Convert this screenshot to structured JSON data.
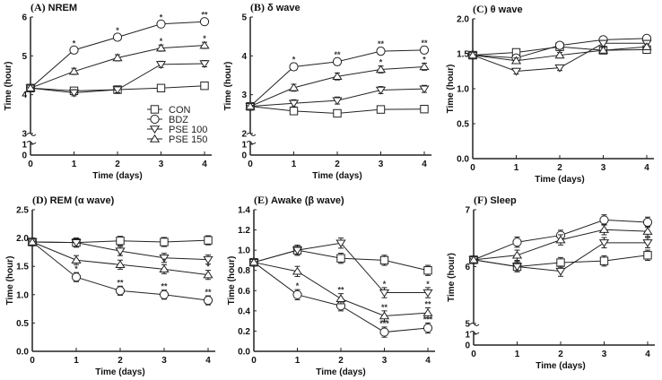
{
  "chart_data": [
    {
      "type": "line",
      "panel": "(A)",
      "title": "NREM",
      "xlabel": "Time (days)",
      "ylabel": "Time (hour)",
      "x": [
        0,
        1,
        2,
        3,
        4
      ],
      "yticks": [
        "0",
        "1",
        "3",
        "4",
        "5",
        "6"
      ],
      "ylim": [
        3,
        6
      ],
      "axis_break": true,
      "err": 0.08,
      "series": [
        {
          "name": "CON",
          "marker": "square",
          "values": [
            4.17,
            4.1,
            4.13,
            4.17,
            4.23
          ],
          "stars": [
            "",
            "",
            "",
            "",
            ""
          ]
        },
        {
          "name": "BDZ",
          "marker": "circle",
          "values": [
            4.17,
            5.15,
            5.48,
            5.82,
            5.88
          ],
          "stars": [
            "",
            "*",
            "*",
            "*",
            "**"
          ]
        },
        {
          "name": "PSE 100",
          "marker": "triangle-down",
          "values": [
            4.17,
            4.05,
            4.13,
            4.78,
            4.8
          ],
          "stars": [
            "",
            "",
            "",
            "",
            ""
          ]
        },
        {
          "name": "PSE 150",
          "marker": "triangle-up",
          "values": [
            4.17,
            4.6,
            4.95,
            5.2,
            5.27
          ],
          "stars": [
            "",
            "",
            "",
            "*",
            "*"
          ]
        }
      ]
    },
    {
      "type": "line",
      "panel": "(B)",
      "title": "δ wave",
      "xlabel": "Time (days)",
      "ylabel": "Time (hour)",
      "x": [
        0,
        1,
        2,
        3,
        4
      ],
      "yticks": [
        "0",
        "1",
        "2",
        "3",
        "4",
        "5"
      ],
      "ylim": [
        2,
        5
      ],
      "axis_break": true,
      "err": 0.09,
      "series": [
        {
          "name": "CON",
          "marker": "square",
          "values": [
            2.7,
            2.58,
            2.52,
            2.62,
            2.63
          ],
          "stars": [
            "",
            "",
            "",
            "",
            ""
          ]
        },
        {
          "name": "BDZ",
          "marker": "circle",
          "values": [
            2.7,
            3.72,
            3.85,
            4.12,
            4.15
          ],
          "stars": [
            "",
            "*",
            "**",
            "**",
            "**"
          ]
        },
        {
          "name": "PSE 100",
          "marker": "triangle-down",
          "values": [
            2.7,
            2.78,
            2.85,
            3.12,
            3.15
          ],
          "stars": [
            "",
            "",
            "",
            "",
            ""
          ]
        },
        {
          "name": "PSE 150",
          "marker": "triangle-up",
          "values": [
            2.7,
            3.18,
            3.47,
            3.65,
            3.72
          ],
          "stars": [
            "",
            "",
            "",
            "*",
            "*"
          ]
        }
      ]
    },
    {
      "type": "line",
      "panel": "(C)",
      "title": "θ wave",
      "xlabel": "Time (days)",
      "ylabel": "Time (hour)",
      "x": [
        0,
        1,
        2,
        3,
        4
      ],
      "yticks": [
        "0.0",
        "0.5",
        "1.0",
        "1.5",
        "2.0"
      ],
      "ylim": [
        0,
        2
      ],
      "axis_break": false,
      "err": 0.04,
      "series": [
        {
          "name": "CON",
          "marker": "square",
          "values": [
            1.48,
            1.52,
            1.6,
            1.55,
            1.56
          ],
          "stars": [
            "",
            "",
            "",
            "",
            ""
          ]
        },
        {
          "name": "BDZ",
          "marker": "circle",
          "values": [
            1.48,
            1.44,
            1.62,
            1.7,
            1.72
          ],
          "stars": [
            "",
            "",
            "",
            "",
            ""
          ]
        },
        {
          "name": "PSE 100",
          "marker": "triangle-down",
          "values": [
            1.48,
            1.25,
            1.3,
            1.65,
            1.65
          ],
          "stars": [
            "",
            "",
            "",
            "",
            ""
          ]
        },
        {
          "name": "PSE 150",
          "marker": "triangle-up",
          "values": [
            1.48,
            1.4,
            1.48,
            1.55,
            1.6
          ],
          "stars": [
            "",
            "",
            "",
            "",
            ""
          ]
        }
      ]
    },
    {
      "type": "line",
      "panel": "(D)",
      "title": "REM (α wave)",
      "xlabel": "Time (days)",
      "ylabel": "Time (hour)",
      "x": [
        0,
        1,
        2,
        3,
        4
      ],
      "yticks": [
        "0.0",
        "0.5",
        "1.0",
        "1.5",
        "2.0",
        "2.5"
      ],
      "ylim": [
        0,
        2.5
      ],
      "axis_break": false,
      "err": 0.08,
      "series": [
        {
          "name": "CON",
          "marker": "square",
          "values": [
            1.93,
            1.92,
            1.95,
            1.93,
            1.96
          ],
          "stars": [
            "",
            "",
            "",
            "",
            ""
          ]
        },
        {
          "name": "BDZ",
          "marker": "circle",
          "values": [
            1.93,
            1.31,
            1.07,
            1.0,
            0.9
          ],
          "stars": [
            "",
            "*",
            "**",
            "**",
            "**"
          ]
        },
        {
          "name": "PSE 100",
          "marker": "triangle-down",
          "values": [
            1.93,
            1.92,
            1.77,
            1.65,
            1.62
          ],
          "stars": [
            "",
            "",
            "",
            "",
            ""
          ]
        },
        {
          "name": "PSE 150",
          "marker": "triangle-up",
          "values": [
            1.93,
            1.61,
            1.53,
            1.45,
            1.35
          ],
          "stars": [
            "",
            "",
            "*",
            "*",
            "*"
          ]
        }
      ]
    },
    {
      "type": "line",
      "panel": "(E)",
      "title": "Awake (β wave)",
      "xlabel": "Time (days)",
      "ylabel": "Time (hour)",
      "x": [
        0,
        1,
        2,
        3,
        4
      ],
      "yticks": [
        "0.0",
        "0.2",
        "0.4",
        "0.6",
        "0.8",
        "1.0",
        "1.2",
        "1.4"
      ],
      "ylim": [
        0,
        1.4
      ],
      "axis_break": false,
      "err": 0.05,
      "series": [
        {
          "name": "CON",
          "marker": "square",
          "values": [
            0.88,
            1.0,
            0.92,
            0.9,
            0.8
          ],
          "stars": [
            "",
            "",
            "",
            "",
            ""
          ]
        },
        {
          "name": "BDZ",
          "marker": "circle",
          "values": [
            0.88,
            0.56,
            0.45,
            0.19,
            0.23
          ],
          "stars": [
            "",
            "*",
            "",
            "***",
            "***"
          ]
        },
        {
          "name": "PSE 100",
          "marker": "triangle-down",
          "values": [
            0.88,
            1.0,
            1.07,
            0.58,
            0.58
          ],
          "stars": [
            "",
            "",
            "",
            "*",
            "*"
          ]
        },
        {
          "name": "PSE 150",
          "marker": "triangle-up",
          "values": [
            0.88,
            0.79,
            0.52,
            0.35,
            0.38
          ],
          "stars": [
            "",
            "",
            "**",
            "**",
            "**"
          ]
        }
      ]
    },
    {
      "type": "line",
      "panel": "(F)",
      "title": "Sleep",
      "xlabel": "Time (days)",
      "ylabel": "Time (hour)",
      "x": [
        0,
        1,
        2,
        3,
        4
      ],
      "yticks": [
        "0",
        "1",
        "5",
        "6",
        "7"
      ],
      "ylim": [
        5,
        7
      ],
      "axis_break": true,
      "err": 0.09,
      "series": [
        {
          "name": "CON",
          "marker": "square",
          "values": [
            6.12,
            6.0,
            6.07,
            6.1,
            6.2
          ],
          "stars": [
            "",
            "",
            "",
            "",
            ""
          ]
        },
        {
          "name": "BDZ",
          "marker": "circle",
          "values": [
            6.12,
            6.43,
            6.55,
            6.82,
            6.78
          ],
          "stars": [
            "",
            "",
            "",
            "",
            ""
          ]
        },
        {
          "name": "PSE 100",
          "marker": "triangle-down",
          "values": [
            6.12,
            6.0,
            5.92,
            6.42,
            6.42
          ],
          "stars": [
            "",
            "",
            "",
            "",
            ""
          ]
        },
        {
          "name": "PSE 150",
          "marker": "triangle-up",
          "values": [
            6.12,
            6.2,
            6.47,
            6.65,
            6.62
          ],
          "stars": [
            "",
            "",
            "",
            "",
            ""
          ]
        }
      ]
    }
  ],
  "legend": [
    "CON",
    "BDZ",
    "PSE 100",
    "PSE 150"
  ],
  "colors": {
    "line": "#222222",
    "marker_fill": "#ffffff"
  }
}
